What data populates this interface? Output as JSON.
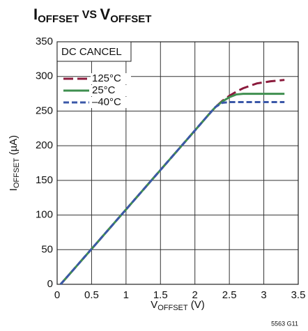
{
  "chart_data": {
    "type": "line",
    "title": [
      "I",
      "OFFSET",
      " VS ",
      "V",
      "OFFSET"
    ],
    "xlabel": [
      "V",
      "OFFSET",
      " (V)"
    ],
    "ylabel": [
      "I",
      "OFFSET",
      " (µA)"
    ],
    "annotation": "DC CANCEL",
    "figure_id": "5563 G11",
    "x": [
      0.05,
      0.5,
      1,
      1.5,
      2,
      2.2,
      2.3,
      2.4,
      2.5,
      2.6,
      2.7,
      2.9,
      3.1,
      3.3
    ],
    "series": [
      {
        "name": "125°C",
        "color": "#8b1a3c",
        "linestyle": "long-dash",
        "values": [
          0,
          51,
          108,
          165,
          222,
          245,
          256,
          265,
          272,
          278,
          283,
          290,
          293,
          295
        ]
      },
      {
        "name": "25°C",
        "color": "#3f8f4f",
        "linestyle": "solid",
        "values": [
          0,
          51,
          108,
          165,
          222,
          245,
          256,
          264,
          270,
          274,
          275,
          275,
          275,
          275
        ]
      },
      {
        "name": "–40°C",
        "color": "#3b58a8",
        "linestyle": "dash",
        "values": [
          0,
          51,
          108,
          165,
          222,
          245,
          256,
          262,
          263,
          263,
          263,
          263,
          263,
          263
        ]
      }
    ],
    "xlim": [
      0,
      3.5
    ],
    "xticks": [
      0,
      0.5,
      1,
      1.5,
      2,
      2.5,
      3,
      3.5
    ],
    "ylim": [
      0,
      350
    ],
    "yticks": [
      0,
      50,
      100,
      150,
      200,
      250,
      300,
      350
    ],
    "grid": true,
    "legend": "upper left"
  }
}
